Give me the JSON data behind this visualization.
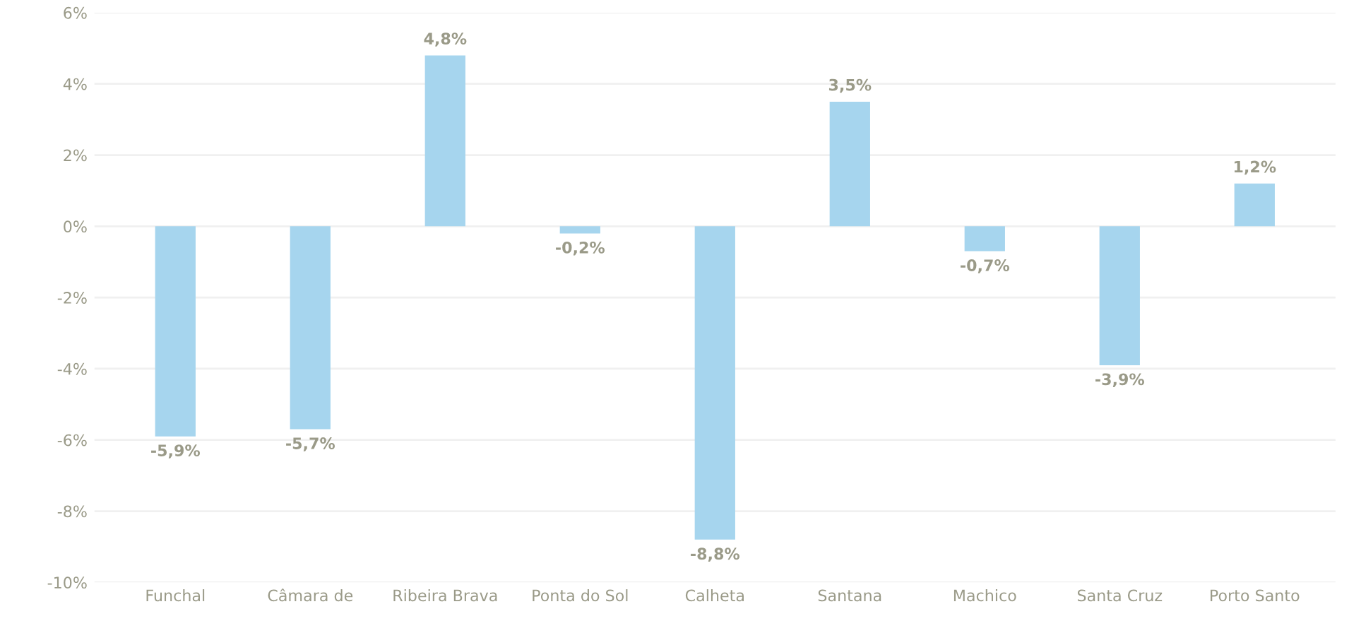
{
  "chart_data": {
    "type": "bar",
    "categories": [
      "Funchal",
      "Câmara de",
      "Ribeira Brava",
      "Ponta do Sol",
      "Calheta",
      "Santana",
      "Machico",
      "Santa Cruz",
      "Porto Santo"
    ],
    "values": [
      -5.9,
      -5.7,
      4.8,
      -0.2,
      -8.8,
      3.5,
      -0.7,
      -3.9,
      1.2
    ],
    "value_labels": [
      "-5,9%",
      "-5,7%",
      "4,8%",
      "-0,2%",
      "-8,8%",
      "3,5%",
      "-0,7%",
      "-3,9%",
      "1,2%"
    ],
    "color": "#a6d5ee",
    "ylim": [
      -10,
      6
    ],
    "yticks": [
      {
        "value": -10,
        "label": "-10%"
      },
      {
        "value": -8,
        "label": "-8%"
      },
      {
        "value": -6,
        "label": "-6%"
      },
      {
        "value": -4,
        "label": "-4%"
      },
      {
        "value": -2,
        "label": "-2%"
      },
      {
        "value": 0,
        "label": "0%"
      },
      {
        "value": 2,
        "label": "2%"
      },
      {
        "value": 4,
        "label": "4%"
      },
      {
        "value": 6,
        "label": "6%"
      }
    ],
    "grid": "y"
  }
}
